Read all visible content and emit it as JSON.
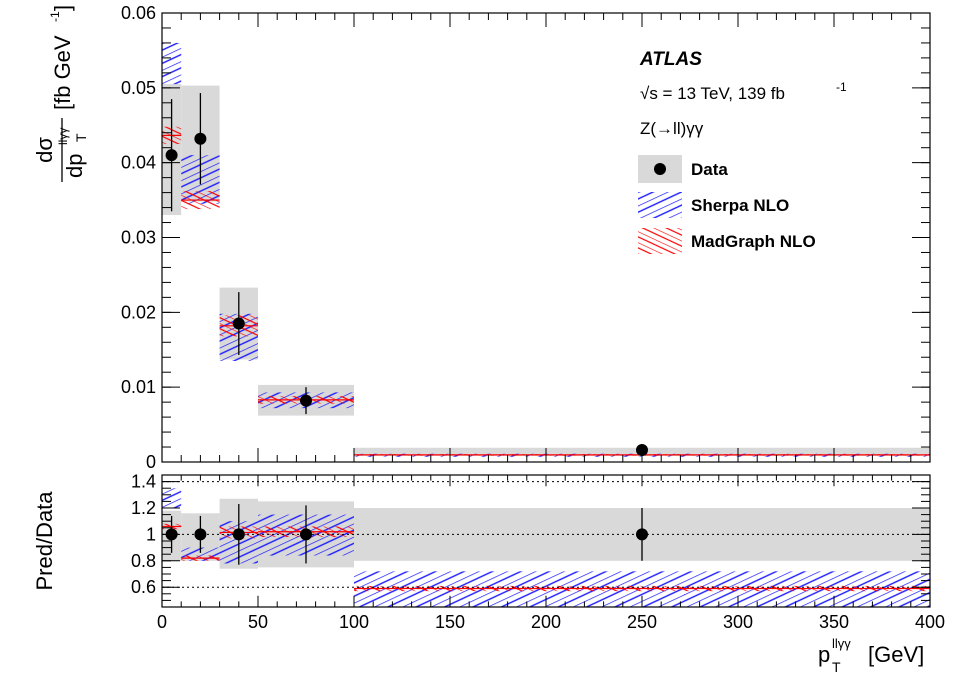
{
  "chart_data": [
    {
      "panel": "main",
      "type": "scatter",
      "experiment": "ATLAS",
      "energy_lumi": "√s = 13 TeV, 139 fb",
      "lumi_exponent": "-1",
      "process": "Z(→ll)γγ",
      "ylabel_num": "dσ",
      "ylabel_den": "dp",
      "ylabel_sup": "llγγ",
      "ylabel_sub": "T",
      "ylabel_unit": "[fb GeV",
      "ylabel_unit_exp": "-1",
      "ylabel_unit_close": "]",
      "xlim": [
        0,
        400
      ],
      "ylim": [
        0,
        0.06
      ],
      "yticks": [
        "0",
        "0.01",
        "0.02",
        "0.03",
        "0.04",
        "0.05",
        "0.06"
      ],
      "legend": [
        "Data",
        "Sherpa NLO",
        "MadGraph NLO"
      ],
      "bins": [
        [
          0,
          10
        ],
        [
          10,
          30
        ],
        [
          30,
          50
        ],
        [
          50,
          100
        ],
        [
          100,
          400
        ]
      ],
      "series": [
        {
          "name": "Data",
          "x": [
            5,
            20,
            40,
            75,
            250
          ],
          "values": [
            0.041,
            0.0432,
            0.0185,
            0.0082,
            0.0016
          ],
          "stat_err": [
            0.0075,
            0.0061,
            0.0042,
            0.0018,
            0.0004
          ],
          "total_lo": [
            0.033,
            0.0348,
            0.0137,
            0.0062,
            0.0008
          ],
          "total_hi": [
            0.0505,
            0.0503,
            0.0233,
            0.0103,
            0.0019
          ]
        },
        {
          "name": "Sherpa NLO",
          "lo": [
            0.0505,
            0.0345,
            0.0135,
            0.0072,
            0.0007
          ],
          "hi": [
            0.056,
            0.041,
            0.0198,
            0.0093,
            0.0011
          ]
        },
        {
          "name": "MadGraph NLO",
          "lo": [
            0.0425,
            0.0338,
            0.0168,
            0.0078,
            0.00085
          ],
          "hi": [
            0.0448,
            0.0362,
            0.0196,
            0.0088,
            0.00105
          ]
        }
      ]
    },
    {
      "panel": "ratio",
      "type": "scatter",
      "ylabel": "Pred/Data",
      "xlabel_main": "p",
      "xlabel_sup": "llγγ",
      "xlabel_sub": "T",
      "xlabel_unit": "[GeV]",
      "xlim": [
        0,
        400
      ],
      "ylim": [
        0.45,
        1.45
      ],
      "xticks": [
        "0",
        "50",
        "100",
        "150",
        "200",
        "250",
        "300",
        "350",
        "400"
      ],
      "yticks": [
        "0.6",
        "0.8",
        "1",
        "1.2",
        "1.4"
      ],
      "series": [
        {
          "name": "Data",
          "x": [
            5,
            20,
            40,
            75,
            250
          ],
          "values": [
            1,
            1,
            1,
            1,
            1
          ],
          "stat_err": [
            0.14,
            0.14,
            0.23,
            0.22,
            0.2
          ],
          "total_lo": [
            0.8,
            0.8,
            0.74,
            0.75,
            0.8
          ],
          "total_hi": [
            1.18,
            1.16,
            1.27,
            1.25,
            1.2
          ]
        },
        {
          "name": "Sherpa NLO",
          "lo": [
            1.2,
            0.8,
            0.78,
            0.84,
            0.45
          ],
          "hi": [
            1.35,
            0.9,
            1.1,
            1.15,
            0.72
          ]
        },
        {
          "name": "MadGraph NLO",
          "lo": [
            1.04,
            0.8,
            0.97,
            0.98,
            0.57
          ],
          "hi": [
            1.08,
            0.84,
            1.06,
            1.06,
            0.61
          ]
        }
      ]
    }
  ],
  "colors": {
    "sherpa": "#1a1aff",
    "madgraph": "#ff0000",
    "band": "#d9d9d9",
    "data": "#000000"
  }
}
